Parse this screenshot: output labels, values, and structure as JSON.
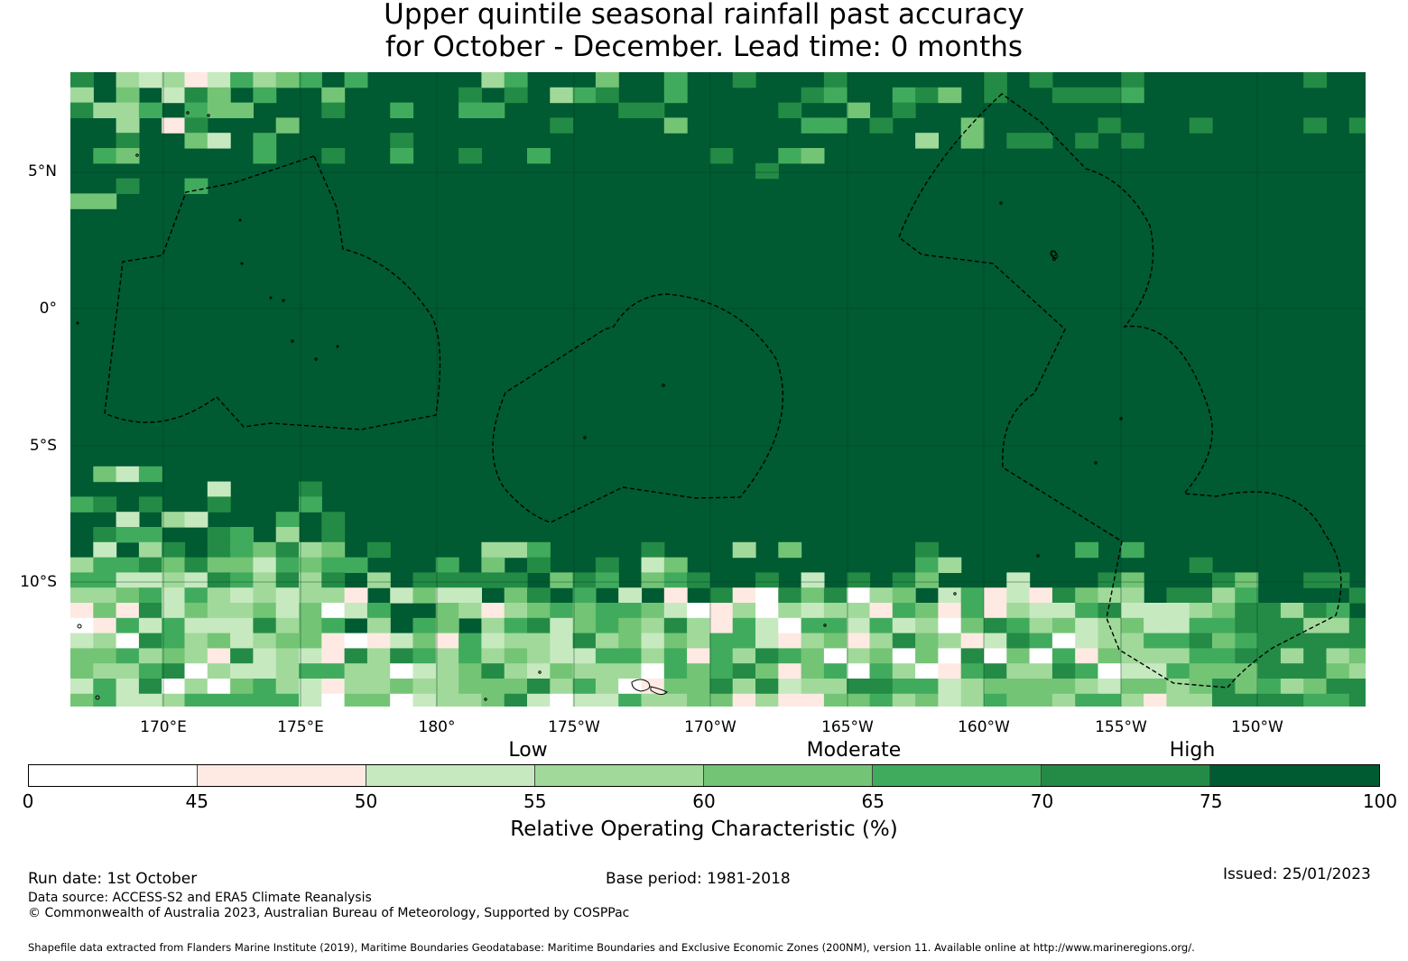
{
  "title": {
    "line1": "Upper quintile seasonal rainfall past accuracy",
    "line2": "for October - December. Lead time: 0 months"
  },
  "map": {
    "lat_labels": [
      "5°N",
      "0°",
      "5°S",
      "10°S"
    ],
    "lon_labels": [
      "170°E",
      "175°E",
      "180°",
      "175°W",
      "170°W",
      "165°W",
      "160°W",
      "155°W",
      "150°W"
    ],
    "extent": {
      "lon_min": 166.6,
      "lon_max": 213.9,
      "lat_min": -14.6,
      "lat_max": 8.6
    },
    "dominant_category": "75-100"
  },
  "legend": {
    "categories": [
      "Low",
      "Moderate",
      "High"
    ],
    "ticks": [
      "0",
      "45",
      "50",
      "55",
      "60",
      "65",
      "70",
      "75",
      "100"
    ],
    "bins": [
      {
        "from": 0,
        "to": 45,
        "color": "#ffffff"
      },
      {
        "from": 45,
        "to": 50,
        "color": "#feeae2"
      },
      {
        "from": 50,
        "to": 55,
        "color": "#c7e9c0"
      },
      {
        "from": 55,
        "to": 60,
        "color": "#a1d99b"
      },
      {
        "from": 60,
        "to": 65,
        "color": "#74c476"
      },
      {
        "from": 65,
        "to": 70,
        "color": "#41ab5d"
      },
      {
        "from": 70,
        "to": 75,
        "color": "#238b45"
      },
      {
        "from": 75,
        "to": 100,
        "color": "#005a32"
      }
    ],
    "label": "Relative Operating Characteristic (%)"
  },
  "footer": {
    "run_date": "Run date: 1st October",
    "base_period": "Base period: 1981-2018",
    "issued": "Issued: 25/01/2023",
    "data_source": "Data source: ACCESS-S2 and ERA5 Climate Reanalysis",
    "copyright": "© Commonwealth of Australia 2023, Australian Bureau of Meteorology, Supported by COSPPac",
    "shapefile": "Shapefile data extracted from Flanders Marine Institute (2019), Maritime Boundaries Geodatabase: Maritime Boundaries and Exclusive Economic Zones (200NM), version 11. Available online at http://www.marineregions.org/."
  }
}
